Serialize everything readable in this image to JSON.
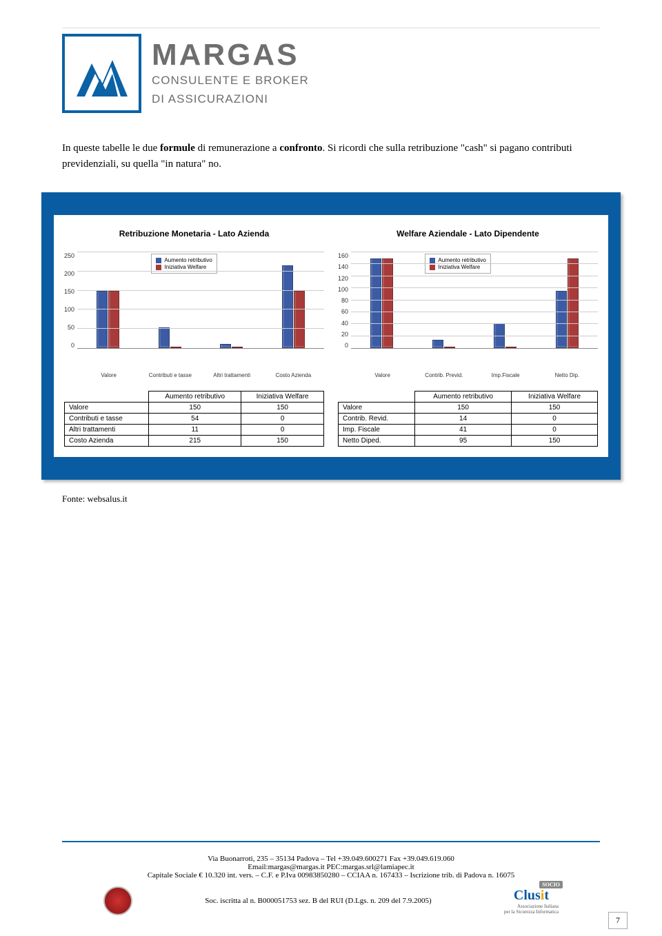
{
  "logo": {
    "main": "MARGAS",
    "sub1": "CONSULENTE E BROKER",
    "sub2": "DI ASSICURAZIONI"
  },
  "intro": {
    "t1": "In queste tabelle le due ",
    "bold1": "formule",
    "t2": " di remunerazione a ",
    "bold2": "confronto",
    "t3": ". Si ricordi che sulla retribuzione \"cash\" si pagano contributi previdenziali, su quella \"in natura\" no."
  },
  "chart_left": {
    "title": "Retribuzione Monetaria - Lato Azienda",
    "ymax": 250,
    "ytick_step": 50,
    "categories": [
      "Valore",
      "Contributi e tasse",
      "Altri trattamenti",
      "Costo Azienda"
    ],
    "series": [
      {
        "name": "Aumento retributivo",
        "color": "#3b5ba5",
        "values": [
          150,
          54,
          11,
          215
        ]
      },
      {
        "name": "Iniziativa Welfare",
        "color": "#a83a3a",
        "values": [
          150,
          0,
          0,
          150
        ]
      }
    ],
    "grid_color": "#cccccc"
  },
  "chart_right": {
    "title": "Welfare Aziendale - Lato Dipendente",
    "ymax": 160,
    "ytick_step": 20,
    "categories": [
      "Valore",
      "Contrib. Previd.",
      "Imp.Fiscale",
      "Netto Dip."
    ],
    "series": [
      {
        "name": "Aumento retributivo",
        "color": "#3b5ba5",
        "values": [
          150,
          14,
          41,
          95
        ]
      },
      {
        "name": "Iniziativa Welfare",
        "color": "#a83a3a",
        "values": [
          150,
          0,
          0,
          150
        ]
      }
    ],
    "grid_color": "#cccccc"
  },
  "table_left": {
    "headers": [
      "",
      "Aumento retributivo",
      "Iniziativa Welfare"
    ],
    "rows": [
      [
        "Valore",
        "150",
        "150"
      ],
      [
        "Contributi e tasse",
        "54",
        "0"
      ],
      [
        "Altri trattamenti",
        "11",
        "0"
      ],
      [
        "Costo Azienda",
        "215",
        "150"
      ]
    ]
  },
  "table_right": {
    "headers": [
      "",
      "Aumento retributivo",
      "Iniziativa Welfare"
    ],
    "rows": [
      [
        "Valore",
        "150",
        "150"
      ],
      [
        "Contrib. Revid.",
        "14",
        "0"
      ],
      [
        "Imp. Fiscale",
        "41",
        "0"
      ],
      [
        "Netto Diped.",
        "95",
        "150"
      ]
    ]
  },
  "fonte": "Fonte: websalus.it",
  "footer": {
    "l1": "Via Buonarroti, 235 – 35134 Padova – Tel +39.049.600271 Fax +39.049.619.060",
    "l2": "Email:margas@margas.it   PEC:margas.srl@lamiapec.it",
    "l3": "Capitale Sociale € 10.320 int. vers. – C.F. e P.Iva 00983850280 – CCIAA n. 167433 – Iscrizione trib. di Padova n. 16075",
    "l4": "Soc. iscritta al n. B000051753 sez. B del RUI (D.Lgs. n. 209 del 7.9.2005)"
  },
  "page_num": "7"
}
